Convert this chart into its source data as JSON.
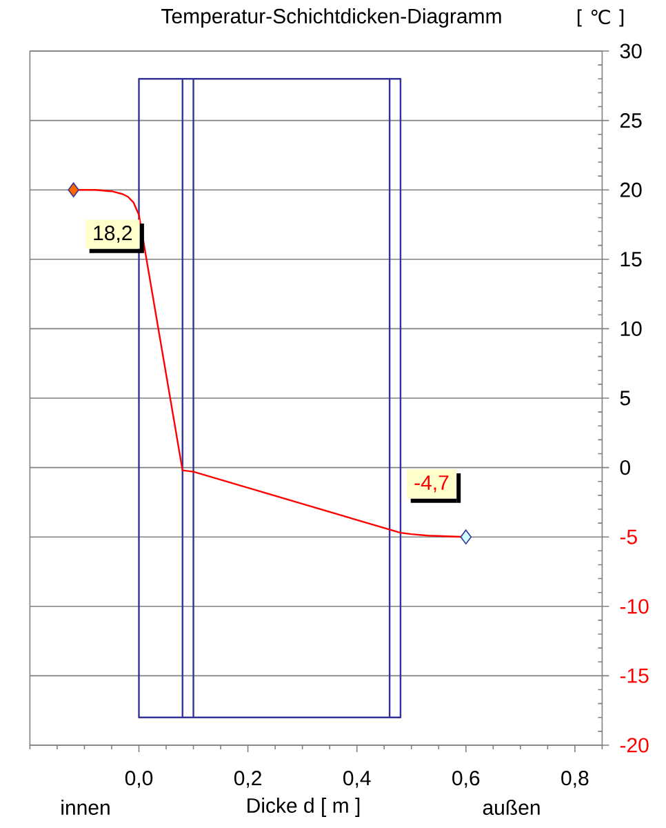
{
  "chart_data": {
    "type": "line",
    "title": "Temperatur-Schichtdicken-Diagramm",
    "xlabel": "Dicke d [ m ]",
    "ylabel": "[ ℃ ]",
    "xlim": [
      -0.2,
      0.85
    ],
    "xticks": [
      {
        "value": 0,
        "label": "0,0"
      },
      {
        "value": 0.2,
        "label": "0,2"
      },
      {
        "value": 0.4,
        "label": "0,4"
      },
      {
        "value": 0.6,
        "label": "0,6"
      },
      {
        "value": 0.8,
        "label": "0,8"
      }
    ],
    "ylim": [
      -20,
      30
    ],
    "yticks": [
      -20,
      -15,
      -10,
      -5,
      0,
      5,
      10,
      15,
      20,
      25,
      30
    ],
    "grid": "y",
    "series": [
      {
        "color": "#333399",
        "x": [
          0,
          0,
          0.48,
          0.48,
          0,
          0.08,
          0.08,
          0.1,
          0.1,
          0.46,
          0.46
        ],
        "values": [
          -18,
          28,
          28,
          -18,
          -18,
          -18,
          28,
          28,
          -18,
          -18,
          28
        ]
      },
      {
        "color": "#ff0000",
        "x": [
          -0.12,
          -0.08,
          -0.05,
          -0.03,
          -0.02,
          -0.01,
          0,
          0.08,
          0.1,
          0.48,
          0.5,
          0.53,
          0.6
        ],
        "values": [
          20,
          20,
          19.9,
          19.7,
          19.5,
          19.1,
          18.2,
          -0.2,
          -0.3,
          -4.7,
          -4.8,
          -4.9,
          -5
        ]
      },
      {
        "type": "scatter",
        "marker": "diamond",
        "colors": [
          "#ff6600",
          "#ccffff"
        ],
        "x": [
          -0.12,
          0.6
        ],
        "values": [
          20,
          -5
        ]
      }
    ],
    "annotations": [
      {
        "text": "18,2",
        "x": 0,
        "y": 18.2
      },
      {
        "text": "-4,7",
        "x": 0.48,
        "y": -4.7
      },
      "innen",
      "außen"
    ]
  }
}
